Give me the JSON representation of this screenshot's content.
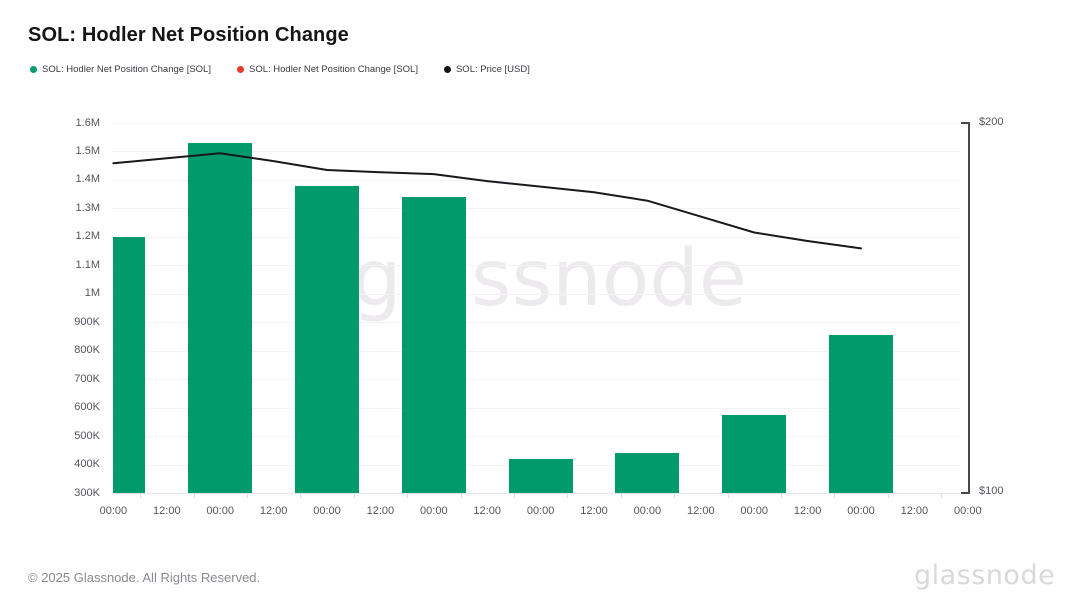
{
  "header": {
    "title": "SOL: Hodler Net Position Change"
  },
  "legend": {
    "items": [
      {
        "label": "SOL: Hodler Net Position Change [SOL]",
        "color": "#009a6b",
        "marker": "dot"
      },
      {
        "label": "SOL: Hodler Net Position Change [SOL]",
        "color": "#e6382d",
        "marker": "dot"
      },
      {
        "label": "SOL: Price [USD]",
        "color": "#131316",
        "marker": "dot"
      }
    ]
  },
  "watermark": {
    "text": "glassnode",
    "color": "#eceaed"
  },
  "footer": {
    "copyright": "© 2025 Glassnode. All Rights Reserved.",
    "brand_logo_text": "glassnode"
  },
  "chart_data": {
    "type": "bar",
    "overlay_type": "line",
    "title": "SOL: Hodler Net Position Change",
    "grid": "horizontal",
    "legend_position": "top-left",
    "x_tick_labels": [
      "00:00",
      "12:00",
      "00:00",
      "12:00",
      "00:00",
      "12:00",
      "00:00",
      "12:00",
      "00:00",
      "12:00",
      "00:00",
      "12:00",
      "00:00",
      "12:00",
      "00:00",
      "12:00",
      "00:00"
    ],
    "left_axis": {
      "tick_labels": [
        "1.6M",
        "1.5M",
        "1.4M",
        "1.3M",
        "1.2M",
        "1.1M",
        "1M",
        "900K",
        "800K",
        "700K",
        "600K",
        "500K",
        "400K",
        "300K"
      ],
      "min": 300000,
      "max": 1600000
    },
    "right_axis": {
      "tick_labels": [
        "$200",
        "$100"
      ],
      "min": 100,
      "max": 200
    },
    "series": [
      {
        "name": "SOL: Hodler Net Position Change [SOL]",
        "type": "bar",
        "axis": "left",
        "color": "#009a6b",
        "unit": "SOL",
        "x_day_index": [
          0,
          1,
          2,
          3,
          4,
          5,
          6,
          7
        ],
        "values": [
          1200000,
          1530000,
          1380000,
          1340000,
          420000,
          440000,
          575000,
          855000
        ]
      },
      {
        "name": "SOL: Hodler Net Position Change [SOL]",
        "type": "bar",
        "axis": "left",
        "color": "#e6382d",
        "unit": "SOL",
        "values": []
      },
      {
        "name": "SOL: Price [USD]",
        "type": "line",
        "axis": "right",
        "color": "#17191c",
        "x_half_day_index": [
          0,
          1,
          2,
          3,
          4,
          5,
          6,
          7,
          8,
          9,
          10,
          11,
          12,
          13,
          14
        ],
        "values": [
          189.1,
          190.5,
          191.8,
          189.7,
          187.3,
          186.7,
          186.2,
          184.3,
          182.8,
          181.3,
          179.0,
          174.7,
          170.4,
          168.1,
          166.1
        ]
      }
    ]
  }
}
